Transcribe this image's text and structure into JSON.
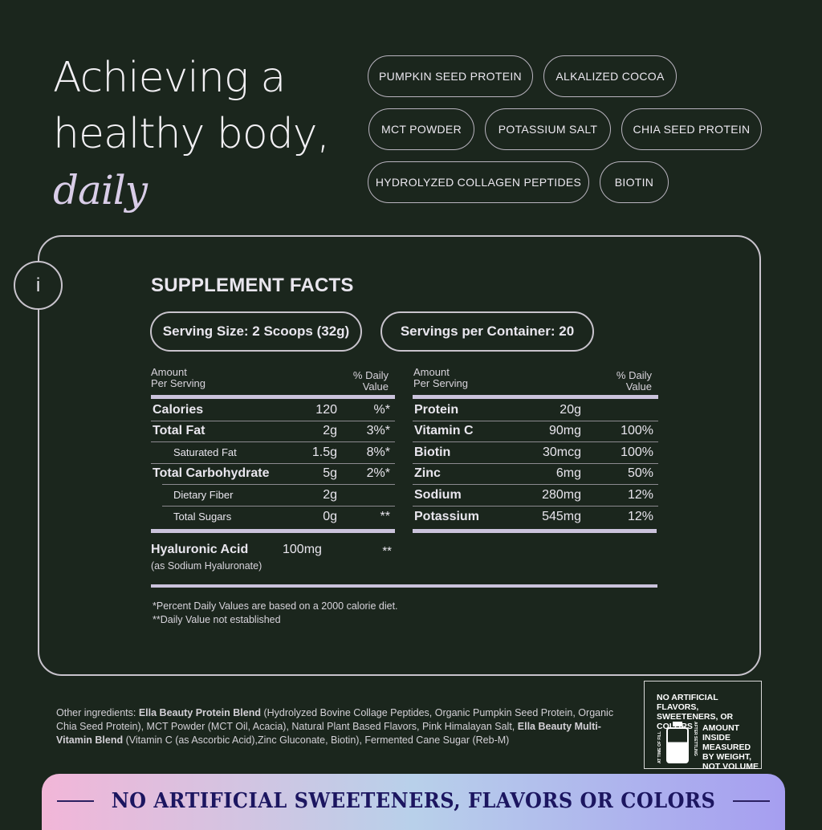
{
  "headline": {
    "line1": "Achieving a",
    "line2": "healthy body,",
    "line3": "daily"
  },
  "ingredient_tags": [
    "PUMPKIN SEED PROTEIN",
    "ALKALIZED COCOA",
    "MCT POWDER",
    "POTASSIUM SALT",
    "CHIA SEED PROTEIN",
    "HYDROLYZED COLLAGEN PEPTIDES",
    "BIOTIN"
  ],
  "info_icon": "i",
  "facts": {
    "title": "SUPPLEMENT FACTS",
    "serving_size": "Serving Size: 2 Scoops (32g)",
    "servings_per_container": "Servings per Container: 20",
    "header_amount": "Amount\nPer Serving",
    "header_dv": "% Daily\nValue",
    "left_rows": [
      {
        "name": "Calories",
        "amount": "120",
        "dv": "%*"
      },
      {
        "name": "Total Fat",
        "amount": "2g",
        "dv": "3%*"
      },
      {
        "name": "Saturated Fat",
        "amount": "1.5g",
        "dv": "8%*"
      },
      {
        "name": "Total Carbohydrate",
        "amount": "5g",
        "dv": "2%*"
      },
      {
        "name": "Dietary Fiber",
        "amount": "2g",
        "dv": ""
      },
      {
        "name": "Total Sugars",
        "amount": "0g",
        "dv": "**"
      }
    ],
    "right_rows": [
      {
        "name": "Protein",
        "amount": "20g",
        "dv": ""
      },
      {
        "name": "Vitamin C",
        "amount": "90mg",
        "dv": "100%"
      },
      {
        "name": "Biotin",
        "amount": "30mcg",
        "dv": "100%"
      },
      {
        "name": "Zinc",
        "amount": "6mg",
        "dv": "50%"
      },
      {
        "name": "Sodium",
        "amount": "280mg",
        "dv": "12%"
      },
      {
        "name": "Potassium",
        "amount": "545mg",
        "dv": "12%"
      }
    ],
    "hyaluronic": {
      "name": "Hyaluronic Acid",
      "note": "(as Sodium Hyaluronate)",
      "amount": "100mg",
      "dv": "**"
    },
    "footnote1": "*Percent Daily Values are based on a 2000 calorie diet.",
    "footnote2": "**Daily Value not established"
  },
  "ingredients": {
    "label": "Other ingredients: ",
    "b1": "Ella Beauty Protein Blend",
    "t1": " (Hydrolyzed Bovine Collage Peptides, Organic Pumpkin Seed Protein, Organic Chia Seed Protein), MCT Powder (MCT Oil, Acacia), Natural Plant Based Flavors, Pink Himalayan Salt, ",
    "b2": "Ella Beauty Multi-Vitamin Blend",
    "t2": " (Vitamin C (as Ascorbic Acid),Zinc Gluconate, Biotin), Fermented Cane Sugar (Reb-M)"
  },
  "badge": {
    "top": "NO ARTIFICIAL FLAVORS, SWEETENERS, OR COLORS",
    "side_left": "AT TIME OF FILL",
    "side_right": "AFTER SETTLING",
    "text": "AMOUNT INSIDE MEASURED BY WEIGHT, NOT VOLUME"
  },
  "banner": {
    "text": "NO ARTIFICIAL SWEETENERS, FLAVORS OR COLORS"
  },
  "colors": {
    "background": "#1b261d",
    "accent": "#cbc3dc",
    "banner_text": "#1c1660"
  }
}
